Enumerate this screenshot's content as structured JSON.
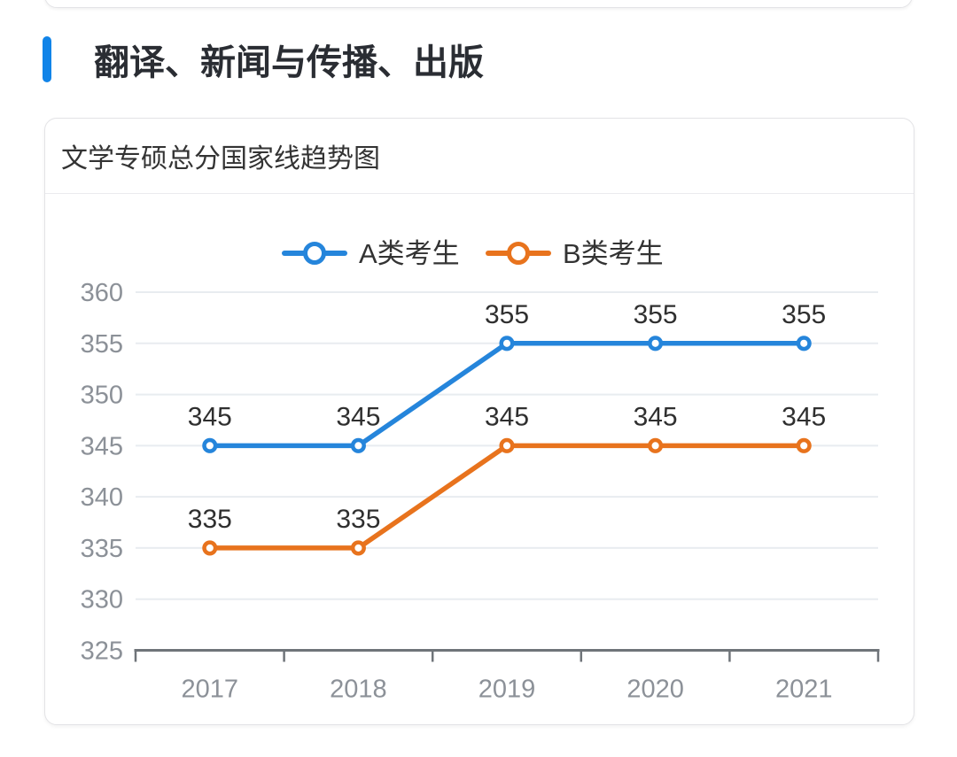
{
  "page": {
    "section_title": "翻译、新闻与传播、出版",
    "accent_color": "#1184e8"
  },
  "card": {
    "title": "文学专硕总分国家线趋势图"
  },
  "chart_data": {
    "type": "line",
    "title": "文学专硕总分国家线趋势图",
    "categories": [
      "2017",
      "2018",
      "2019",
      "2020",
      "2021"
    ],
    "series": [
      {
        "name": "A类考生",
        "values": [
          345,
          345,
          355,
          355,
          355
        ],
        "color": "#2585db"
      },
      {
        "name": "B类考生",
        "values": [
          335,
          335,
          345,
          345,
          345
        ],
        "color": "#e8731d"
      }
    ],
    "ylim": [
      325,
      360
    ],
    "yticks": [
      325,
      330,
      335,
      340,
      345,
      350,
      355,
      360
    ],
    "xlabel": "",
    "ylabel": "",
    "grid": true,
    "legend_position": "top",
    "data_labels": true,
    "marker": "empty-circle",
    "grid_color": "#e8ecf0",
    "axis_line_color": "#6f7479",
    "axis_label_color": "#8c9198",
    "label_color": "#2f2f2f",
    "legend_text_color": "#333333"
  }
}
